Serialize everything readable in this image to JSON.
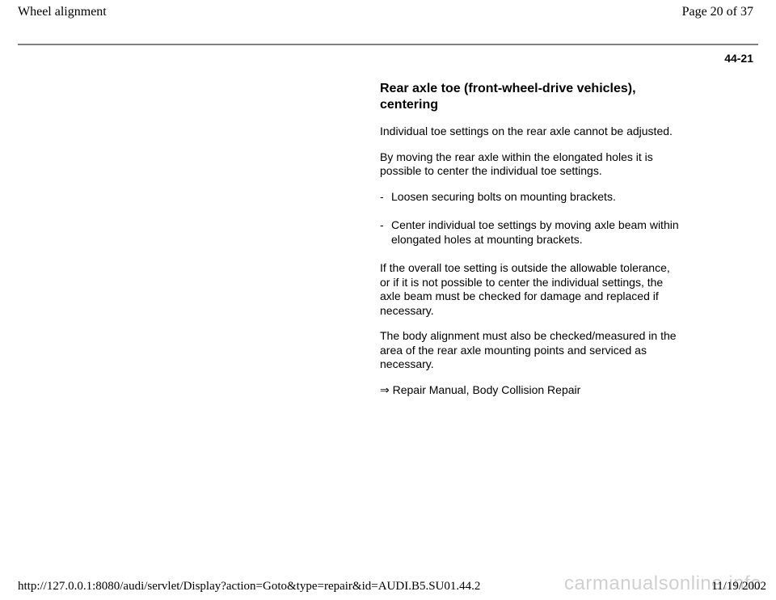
{
  "header": {
    "title": "Wheel alignment",
    "page_label": "Page 20 of 37"
  },
  "page_number": "44-21",
  "section": {
    "title": "Rear axle toe (front-wheel-drive vehicles), centering",
    "para1": "Individual toe settings on the rear axle cannot be adjusted.",
    "para2": "By moving the rear axle within the elongated holes it is possible to center the individual toe settings.",
    "bullets": {
      "dash": "-",
      "b1": "Loosen securing bolts on mounting brackets.",
      "b2": "Center individual toe settings by moving axle beam within elongated holes at mounting brackets."
    },
    "para3": "If the overall toe setting is outside the allowable tolerance, or if it is not possible to center the individual settings, the axle beam must be checked for damage and replaced if necessary.",
    "para4": "The body alignment must also be checked/measured in the area of the rear axle mounting points and serviced as necessary.",
    "ref_arrow": "⇒",
    "ref_text": " Repair Manual, Body Collision Repair"
  },
  "footer": {
    "url": "http://127.0.0.1:8080/audi/servlet/Display?action=Goto&type=repair&id=AUDI.B5.SU01.44.2",
    "date": "11/19/2002"
  },
  "watermark": "carmanualsonline.info"
}
